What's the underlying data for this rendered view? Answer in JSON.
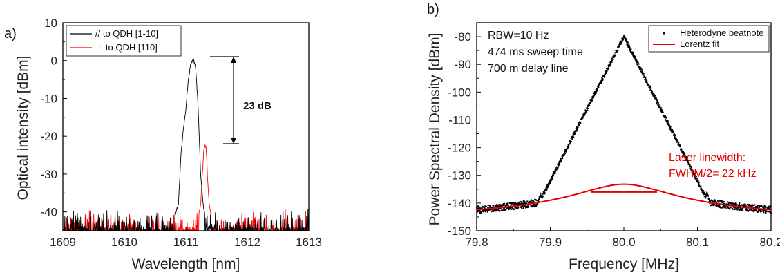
{
  "chart_data": [
    {
      "panel_label": "a)",
      "type": "line",
      "xlabel": "Wavelength [nm]",
      "ylabel": "Optical intensity [dBm]",
      "xlim": [
        1609,
        1613
      ],
      "ylim": [
        -45,
        10
      ],
      "xticks": [
        1609,
        1610,
        1611,
        1612,
        1613
      ],
      "yticks": [
        -40,
        -30,
        -20,
        -10,
        0,
        10
      ],
      "grid": false,
      "legend_position": "top-left",
      "noise_floor": -42,
      "series": [
        {
          "name": "// to QDH [1-10]",
          "color": "#000000",
          "peak_x": 1611.12,
          "peak_y": 0.5,
          "x": [
            1610.8,
            1610.88,
            1610.92,
            1610.96,
            1611.0,
            1611.04,
            1611.08,
            1611.12,
            1611.16,
            1611.2,
            1611.24,
            1611.28,
            1611.32
          ],
          "y": [
            -42,
            -38,
            -25,
            -18,
            -13,
            -5,
            -1,
            0.5,
            -2,
            -12,
            -30,
            -38,
            -42
          ]
        },
        {
          "name": "⊥ to QDH [110]",
          "color": "#ff0000",
          "peak_x": 1611.31,
          "peak_y": -22,
          "x": [
            1611.2,
            1611.24,
            1611.27,
            1611.29,
            1611.31,
            1611.33,
            1611.35,
            1611.38,
            1611.42
          ],
          "y": [
            -42,
            -38,
            -30,
            -24,
            -22,
            -23,
            -30,
            -38,
            -42
          ]
        }
      ],
      "annotations": [
        {
          "text": "23 dB",
          "from_y": 0.5,
          "to_y": -22,
          "x": 1611.5
        }
      ]
    },
    {
      "panel_label": "b)",
      "type": "scatter",
      "xlabel": "Frequency [MHz]",
      "ylabel": "Power Spectral Density [dBm]",
      "xlim": [
        79.8,
        80.2
      ],
      "ylim": [
        -150,
        -75
      ],
      "xticks": [
        79.8,
        79.9,
        80.0,
        80.1,
        80.2
      ],
      "xtick_labels": [
        "79.8",
        "79.9",
        "80.0",
        "80.1",
        "80.2"
      ],
      "yticks": [
        -150,
        -140,
        -130,
        -120,
        -110,
        -100,
        -90,
        -80
      ],
      "grid": false,
      "legend_position": "top-right",
      "series": [
        {
          "name": "Heterodyne beatnote",
          "color": "#000000",
          "center": 80.0,
          "peak": -80,
          "floor": -145.5,
          "sidebands": [
            79.887,
            80.113
          ],
          "sideband_peak": -136.5
        },
        {
          "name": "Lorentz fit",
          "color": "#e00000",
          "center": 80.0,
          "peak": -133.2,
          "floor": -145.5,
          "hwhm_mhz": 0.022,
          "half_width_marker": [
            79.955,
            80.045
          ],
          "half_width_level": -136
        }
      ],
      "text_box": [
        "RBW=10 Hz",
        "474 ms sweep time",
        "700 m delay line"
      ],
      "linewidth_note": {
        "line1": "Laser linewidth:",
        "line2": "FWHM/2= 22 kHz",
        "color": "#e00000"
      }
    }
  ]
}
